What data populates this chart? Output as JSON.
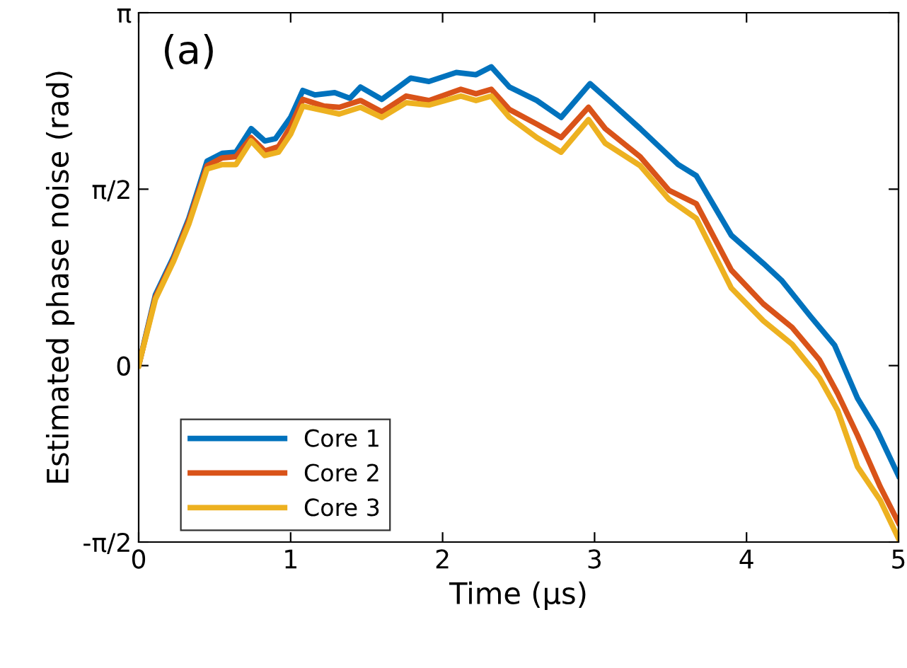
{
  "chart_data": {
    "type": "line",
    "xlabel": "Time (μs)",
    "ylabel": "Estimated phase noise (rad)",
    "annotations": [
      "(a)"
    ],
    "xlim": [
      0,
      5
    ],
    "xticks": [
      0,
      1,
      2,
      3,
      4,
      5
    ],
    "ylim": [
      -1.5708,
      3.1416
    ],
    "yticks": [
      {
        "value": -1.5708,
        "label": "-π/2"
      },
      {
        "value": 0,
        "label": "0"
      },
      {
        "value": 1.5708,
        "label": "π/2"
      },
      {
        "value": 3.1416,
        "label": "π"
      }
    ],
    "grid": false,
    "legend": "bottom left",
    "line_style": "solid",
    "marker": "none",
    "series": [
      {
        "name": "Core 1",
        "color": "#0072bd",
        "x": [
          0,
          0.11,
          0.23,
          0.33,
          0.45,
          0.55,
          0.64,
          0.74,
          0.83,
          0.9,
          1.0,
          1.08,
          1.16,
          1.29,
          1.39,
          1.46,
          1.6,
          1.71,
          1.79,
          1.91,
          2.09,
          2.22,
          2.32,
          2.44,
          2.62,
          2.78,
          2.97,
          3.12,
          3.3,
          3.55,
          3.67,
          3.9,
          4.11,
          4.23,
          4.42,
          4.58,
          4.73,
          4.86,
          5.0
        ],
        "values": [
          0,
          0.63,
          0.97,
          1.31,
          1.82,
          1.89,
          1.9,
          2.11,
          2.0,
          2.02,
          2.21,
          2.45,
          2.41,
          2.43,
          2.38,
          2.48,
          2.37,
          2.48,
          2.56,
          2.53,
          2.61,
          2.59,
          2.66,
          2.48,
          2.36,
          2.21,
          2.51,
          2.33,
          2.11,
          1.79,
          1.69,
          1.16,
          0.91,
          0.76,
          0.44,
          0.18,
          -0.29,
          -0.58,
          -0.98
        ]
      },
      {
        "name": "Core 2",
        "color": "#d95319",
        "x": [
          0,
          0.11,
          0.23,
          0.33,
          0.45,
          0.55,
          0.64,
          0.74,
          0.83,
          0.92,
          1.0,
          1.08,
          1.22,
          1.32,
          1.46,
          1.6,
          1.76,
          1.91,
          2.12,
          2.22,
          2.32,
          2.44,
          2.62,
          2.78,
          2.96,
          3.07,
          3.3,
          3.49,
          3.67,
          3.9,
          4.11,
          4.3,
          4.48,
          4.6,
          4.73,
          4.88,
          5.0
        ],
        "values": [
          0,
          0.61,
          0.95,
          1.29,
          1.78,
          1.85,
          1.86,
          2.03,
          1.91,
          1.95,
          2.13,
          2.37,
          2.31,
          2.3,
          2.36,
          2.26,
          2.4,
          2.36,
          2.46,
          2.42,
          2.46,
          2.28,
          2.15,
          2.03,
          2.3,
          2.11,
          1.86,
          1.56,
          1.44,
          0.85,
          0.55,
          0.34,
          0.05,
          -0.25,
          -0.62,
          -1.08,
          -1.4
        ]
      },
      {
        "name": "Core 3",
        "color": "#edb120",
        "x": [
          0,
          0.11,
          0.23,
          0.33,
          0.45,
          0.55,
          0.64,
          0.74,
          0.83,
          0.92,
          1.0,
          1.08,
          1.22,
          1.32,
          1.46,
          1.6,
          1.76,
          1.91,
          2.12,
          2.22,
          2.32,
          2.44,
          2.62,
          2.78,
          2.96,
          3.07,
          3.3,
          3.49,
          3.67,
          3.9,
          4.11,
          4.3,
          4.48,
          4.6,
          4.73,
          4.88,
          5.0
        ],
        "values": [
          0,
          0.59,
          0.93,
          1.26,
          1.75,
          1.79,
          1.79,
          2.0,
          1.87,
          1.9,
          2.06,
          2.31,
          2.27,
          2.24,
          2.3,
          2.21,
          2.34,
          2.32,
          2.4,
          2.36,
          2.4,
          2.21,
          2.03,
          1.9,
          2.19,
          1.98,
          1.78,
          1.48,
          1.31,
          0.69,
          0.4,
          0.19,
          -0.11,
          -0.4,
          -0.9,
          -1.2,
          -1.54
        ]
      }
    ]
  }
}
